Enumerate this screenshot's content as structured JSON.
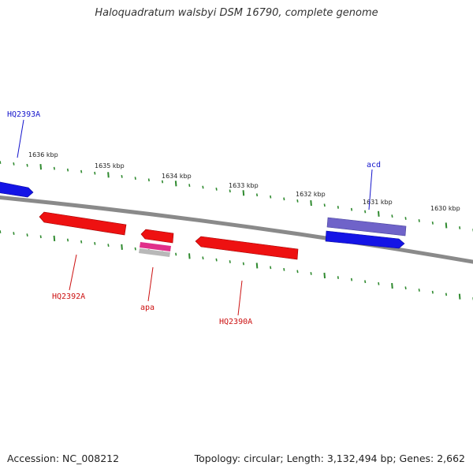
{
  "title": "Haloquadratum walsbyi DSM 16790, complete genome",
  "footer": {
    "accession": "Accession: NC_008212",
    "summary": "Topology: circular; Length: 3,132,494 bp; Genes: 2,662"
  },
  "colors": {
    "backbone": "#8a8a8a",
    "tick": "#2f8a2f",
    "forward_gene": "#1414e6",
    "reverse_gene": "#ee1111",
    "rna_pink": "#e0308a",
    "rna_grey": "#b8b8b8",
    "acd_purple": "#6f63c9",
    "forward_label": "#1414cc",
    "reverse_label": "#cc1111"
  },
  "tick_labels": [
    "1636 kbp",
    "1635 kbp",
    "1634 kbp",
    "1633 kbp",
    "1632 kbp",
    "1631 kbp",
    "1630 kbp"
  ],
  "gene_labels": {
    "hq2393a": "HQ2393A",
    "acd": "acd",
    "hq2392a": "HQ2392A",
    "apa": "apa",
    "hq2390a": "HQ2390A"
  }
}
